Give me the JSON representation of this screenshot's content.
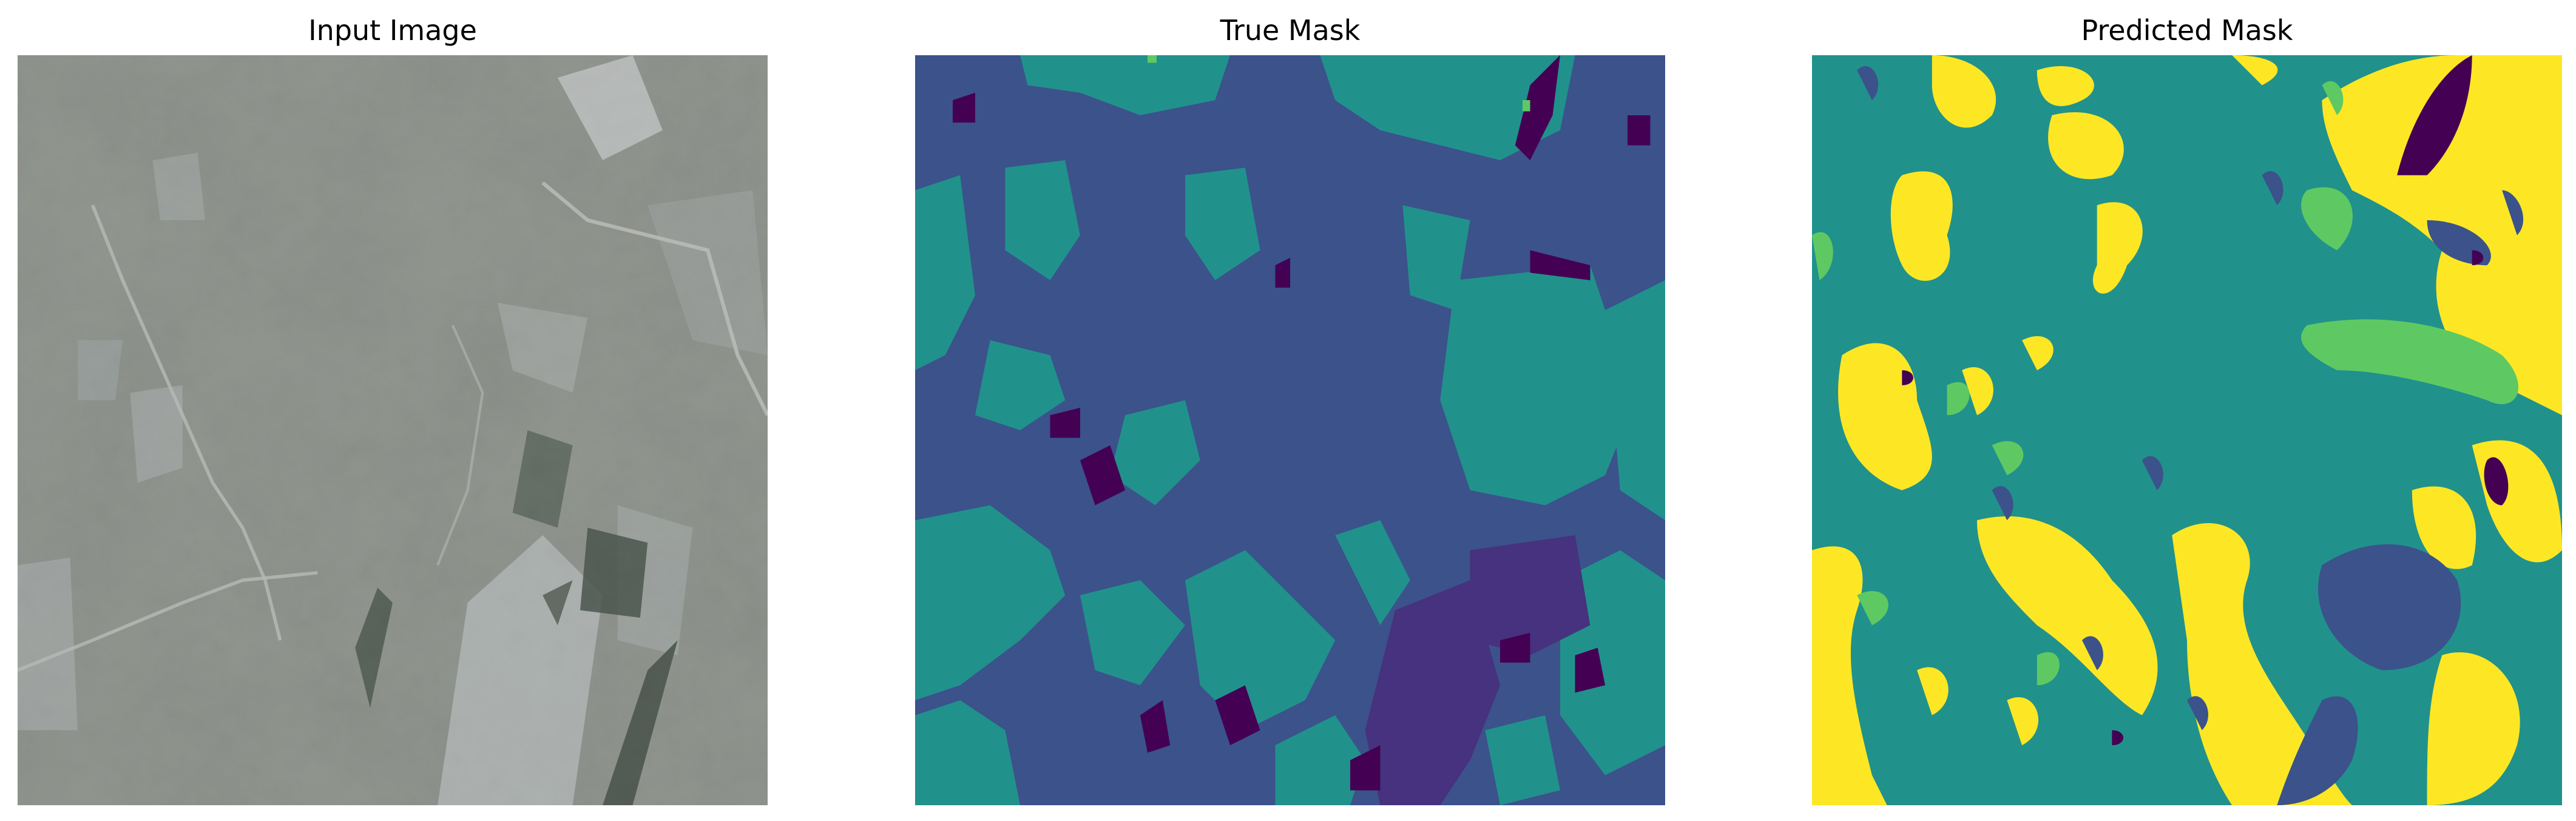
{
  "panels": [
    {
      "title": "Input Image"
    },
    {
      "title": "True Mask"
    },
    {
      "title": "Predicted Mask"
    }
  ],
  "colors": {
    "background": "#ffffff",
    "mask_class_0": "#440154",
    "mask_class_1": "#3b528b",
    "mask_class_2": "#21918c",
    "mask_class_3": "#5ec962",
    "mask_class_4": "#fde725",
    "terrain_base": "#8c908a"
  }
}
